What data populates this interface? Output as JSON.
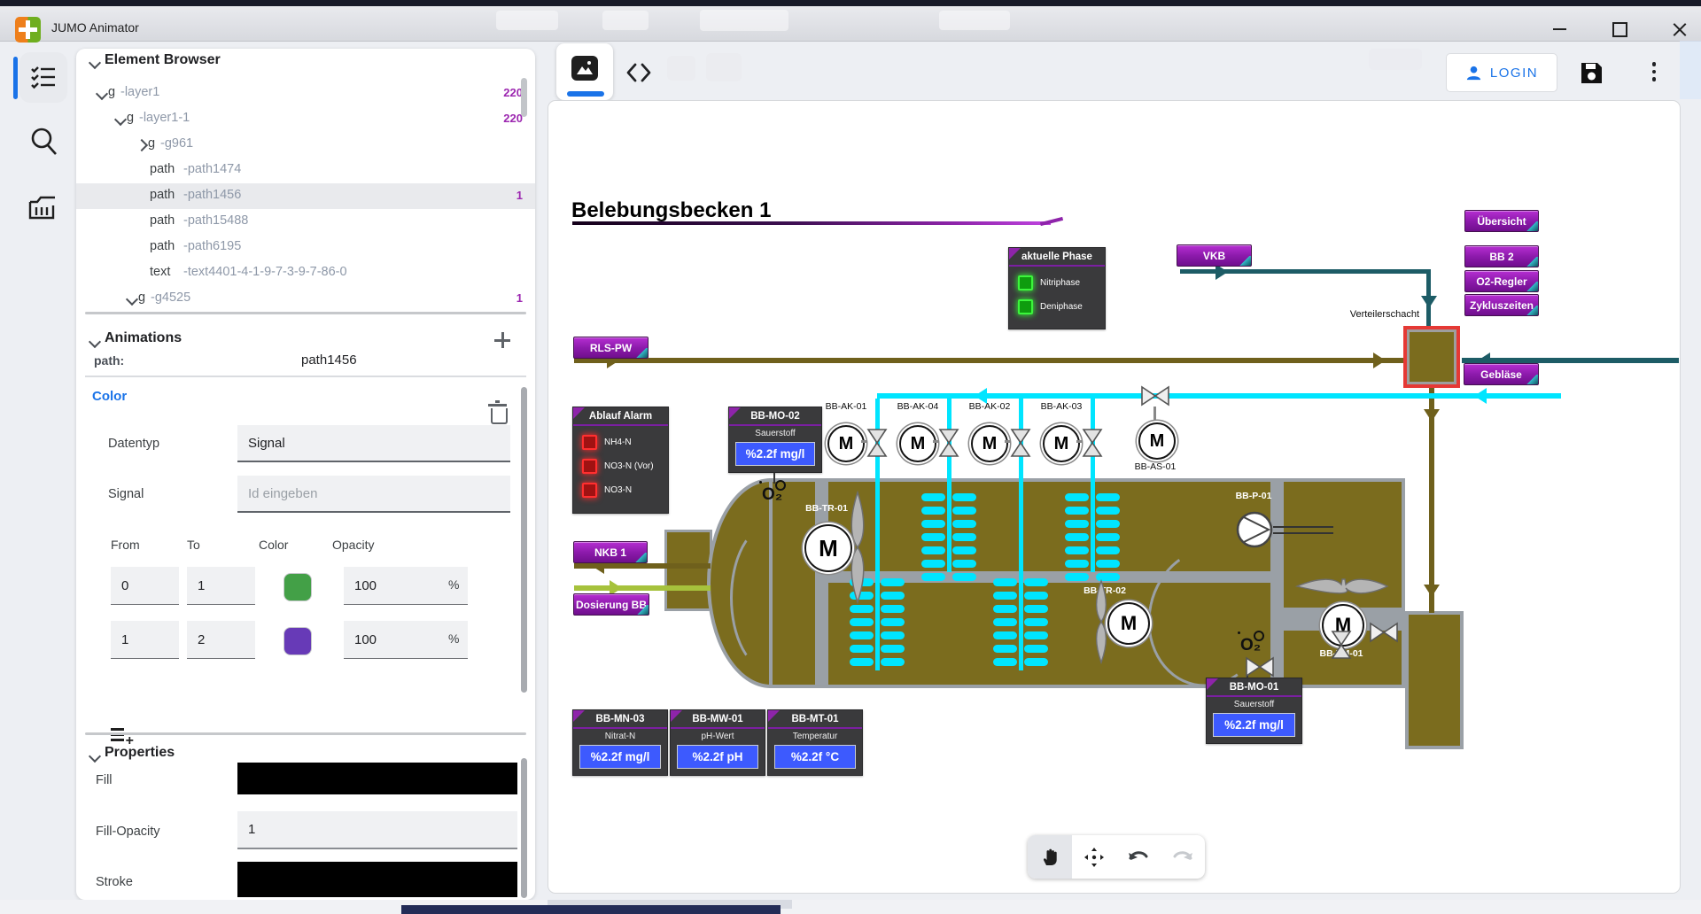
{
  "window": {
    "title": "JUMO Animator"
  },
  "element_browser": {
    "title": "Element Browser",
    "items": [
      {
        "tag": "g",
        "name": "-layer1",
        "badge": "220",
        "chev": "down",
        "chevX": 24,
        "tagX": 36,
        "selected": false
      },
      {
        "tag": "g",
        "name": "-layer1-1",
        "badge": "220",
        "chev": "down",
        "chevX": 45,
        "tagX": 57,
        "selected": false
      },
      {
        "tag": "g",
        "name": "-g961",
        "badge": "",
        "chev": "right",
        "chevX": 69,
        "tagX": 81,
        "selected": false
      },
      {
        "tag": "path",
        "name": "-path1474",
        "badge": "",
        "chev": "",
        "chevX": 0,
        "tagX": 83,
        "selected": false
      },
      {
        "tag": "path",
        "name": "-path1456",
        "badge": "1",
        "chev": "",
        "chevX": 0,
        "tagX": 83,
        "selected": true
      },
      {
        "tag": "path",
        "name": "-path15488",
        "badge": "",
        "chev": "",
        "chevX": 0,
        "tagX": 83,
        "selected": false
      },
      {
        "tag": "path",
        "name": "-path6195",
        "badge": "",
        "chev": "",
        "chevX": 0,
        "tagX": 83,
        "selected": false
      },
      {
        "tag": "text",
        "name": "-text4401-4-1-9-7-3-9-7-86-0",
        "badge": "",
        "chev": "",
        "chevX": 0,
        "tagX": 83,
        "selected": false
      },
      {
        "tag": "g",
        "name": "-g4525",
        "badge": "1",
        "chev": "down",
        "chevX": 58,
        "tagX": 70,
        "selected": false
      }
    ]
  },
  "animations": {
    "title": "Animations",
    "path_label": "path:",
    "path_value": "path1456",
    "rule_title": "Color",
    "datentyp_label": "Datentyp",
    "datentyp_value": "Signal",
    "signal_label": "Signal",
    "signal_placeholder": "Id eingeben",
    "table": {
      "headers": [
        "From",
        "To",
        "Color",
        "Opacity"
      ],
      "rows": [
        {
          "from": "0",
          "to": "1",
          "color": "#43a047",
          "opacity": "100",
          "unit": "%"
        },
        {
          "from": "1",
          "to": "2",
          "color": "#673ab7",
          "opacity": "100",
          "unit": "%"
        }
      ]
    }
  },
  "properties": {
    "title": "Properties",
    "fill_label": "Fill",
    "fill_color": "#000000",
    "fill_opacity_label": "Fill-Opacity",
    "fill_opacity_value": "1",
    "stroke_label": "Stroke",
    "stroke_color": "#000000"
  },
  "toolbar": {
    "login_label": "LOGIN"
  },
  "canvas": {
    "title": "Belebungsbecken 1",
    "verteilerschacht": "Verteilerschacht",
    "o2_symbol": "O₂",
    "nav_buttons": [
      {
        "id": "uebersicht",
        "label": "Übersicht"
      },
      {
        "id": "bb2",
        "label": "BB 2"
      },
      {
        "id": "o2regler",
        "label": "O2-Regler"
      },
      {
        "id": "zykluszeiten",
        "label": "Zykluszeiten"
      },
      {
        "id": "vkb",
        "label": "VKB"
      },
      {
        "id": "geblaese",
        "label": "Gebläse"
      },
      {
        "id": "rlspw",
        "label": "RLS-PW"
      },
      {
        "id": "nkb1",
        "label": "NKB 1"
      },
      {
        "id": "dosierungbb",
        "label": "Dosierung BB"
      }
    ],
    "phase_panel": {
      "title": "aktuelle Phase",
      "items": [
        "Nitriphase",
        "Deniphase"
      ]
    },
    "alarm_panel": {
      "title": "Ablauf Alarm",
      "items": [
        "NH4-N",
        "NO3-N (Vor)",
        "NO3-N"
      ]
    },
    "displays": [
      {
        "id": "BB-MO-02",
        "label": "Sauerstoff",
        "value": "%2.2f mg/l"
      },
      {
        "id": "BB-MN-03",
        "label": "Nitrat-N",
        "value": "%2.2f mg/l"
      },
      {
        "id": "BB-MW-01",
        "label": "pH-Wert",
        "value": "%2.2f pH"
      },
      {
        "id": "BB-MT-01",
        "label": "Temperatur",
        "value": "%2.2f °C"
      },
      {
        "id": "BB-MO-01",
        "label": "Sauerstoff",
        "value": "%2.2f mg/l"
      }
    ],
    "air_valves": [
      "BB-AK-01",
      "BB-AK-04",
      "BB-AK-02",
      "BB-AK-03"
    ],
    "equipment": {
      "as01": "BB-AS-01",
      "tr01": "BB-TR-01",
      "tr02": "BB-TR-02",
      "p01": "BB-P-01",
      "tm01": "BB-TM-01"
    }
  },
  "colors": {
    "accent": "#1a73e8",
    "badge": "#9c27b0",
    "button_purple": "#8e24aa",
    "pipe_olive": "#6f601c",
    "pipe_teal": "#1d5c66",
    "pipe_air": "#00e5ff",
    "pipe_green": "#a6c23c",
    "basin": "#7b6c1e",
    "selection_red": "#e53935",
    "value_blue": "#3d5afe",
    "led_green": "#1ed41e",
    "led_red": "#e53935"
  }
}
